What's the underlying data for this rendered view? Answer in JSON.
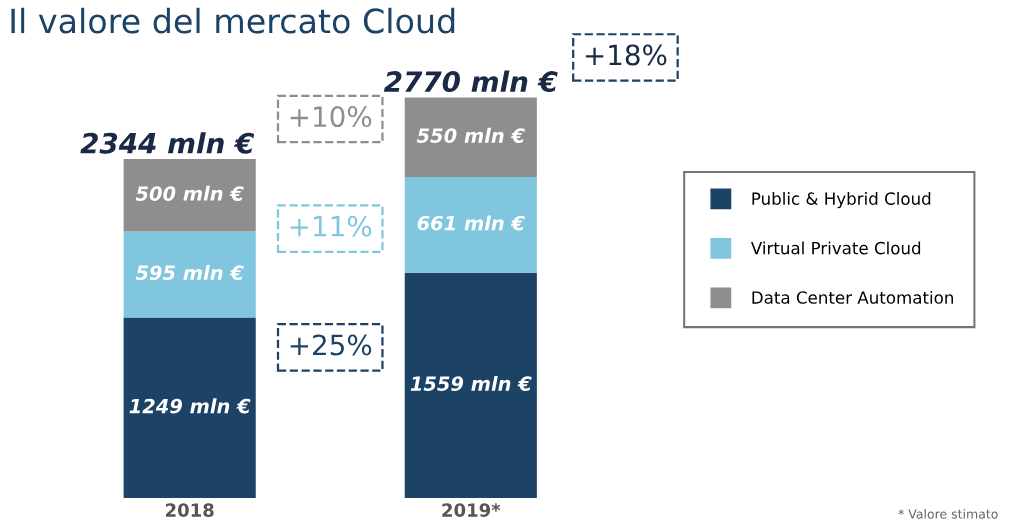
{
  "chart_data": {
    "type": "bar",
    "title": "Il valore del mercato Cloud",
    "stacked": true,
    "categories": [
      "2018",
      "2019*"
    ],
    "series": [
      {
        "name": "Public & Hybrid Cloud",
        "color": "#1c4266",
        "values": [
          1249,
          1559
        ],
        "value_labels": [
          "1249 mln €",
          "1559 mln €"
        ]
      },
      {
        "name": "Virtual Private Cloud",
        "color": "#80c6de",
        "values": [
          595,
          661
        ],
        "value_labels": [
          "595 mln €",
          "661 mln €"
        ]
      },
      {
        "name": "Data Center Automation",
        "color": "#8e8e8e",
        "values": [
          500,
          550
        ],
        "value_labels": [
          "500 mln €",
          "550 mln €"
        ]
      }
    ],
    "totals": [
      "2344 mln €",
      "2770 mln €"
    ],
    "annotations": [
      "+10%",
      "+11%",
      "+25%",
      "+18%",
      "* Valore stimato"
    ],
    "legend": "right",
    "marker": "square",
    "grid": false
  }
}
